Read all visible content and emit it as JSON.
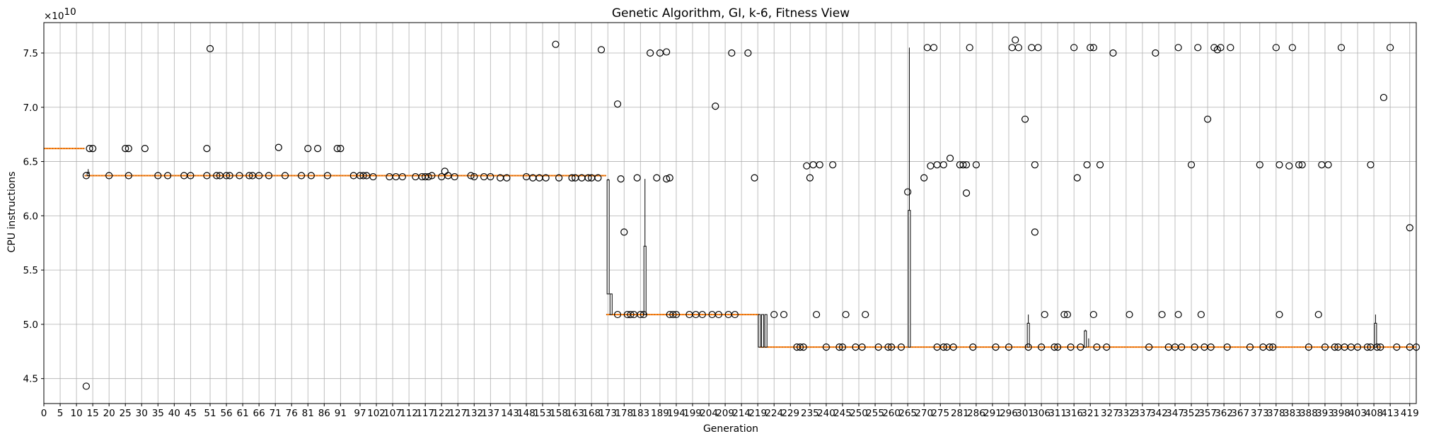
{
  "chart_data": {
    "type": "box",
    "title": "Genetic Algorithm, GI, k-6, Fitness View",
    "xlabel": "Generation",
    "ylabel": "CPU instructions",
    "y_multiplier_label": "×10",
    "y_multiplier_exponent": "10",
    "xlim": [
      0,
      421
    ],
    "ylim": [
      4.27,
      7.78
    ],
    "grid": true,
    "x_ticks": [
      0,
      5,
      10,
      15,
      20,
      25,
      30,
      35,
      40,
      45,
      51,
      56,
      61,
      66,
      71,
      76,
      81,
      86,
      91,
      97,
      102,
      107,
      112,
      117,
      122,
      127,
      132,
      137,
      143,
      148,
      153,
      158,
      163,
      168,
      173,
      178,
      183,
      189,
      194,
      199,
      204,
      209,
      214,
      219,
      224,
      229,
      235,
      240,
      245,
      250,
      255,
      260,
      265,
      270,
      275,
      281,
      286,
      291,
      296,
      301,
      306,
      311,
      316,
      321,
      327,
      332,
      337,
      342,
      347,
      352,
      357,
      362,
      367,
      373,
      378,
      383,
      388,
      393,
      398,
      403,
      408,
      413,
      419
    ],
    "y_ticks": [
      4.5,
      5.0,
      5.5,
      6.0,
      6.5,
      7.0,
      7.5
    ],
    "y_tick_labels": [
      "4.5",
      "5.0",
      "5.5",
      "6.0",
      "6.5",
      "7.0",
      "7.5"
    ],
    "median_segments": [
      {
        "from": 0,
        "to": 12.5,
        "value": 6.62
      },
      {
        "from": 12.5,
        "to": 172.5,
        "value": 6.37
      },
      {
        "from": 172.5,
        "to": 219.5,
        "value": 5.09
      },
      {
        "from": 219.5,
        "to": 421,
        "value": 4.79
      }
    ],
    "whiskers": [
      {
        "x": 13.6,
        "low": 6.37,
        "high": 6.43
      },
      {
        "x": 173.1,
        "low": 5.28,
        "high": 6.34
      },
      {
        "x": 174,
        "low": 5.09,
        "high": 5.28
      },
      {
        "x": 184.4,
        "low": 5.09,
        "high": 6.34
      },
      {
        "x": 219.5,
        "low": 4.79,
        "high": 5.09
      },
      {
        "x": 220.5,
        "low": 4.79,
        "high": 5.09
      },
      {
        "x": 221.5,
        "low": 4.79,
        "high": 5.09
      },
      {
        "x": 265.5,
        "low": 4.79,
        "high": 7.55
      },
      {
        "x": 302,
        "low": 4.79,
        "high": 5.09
      },
      {
        "x": 319.5,
        "low": 4.79,
        "high": 4.95
      },
      {
        "x": 320.5,
        "low": 4.79,
        "high": 4.87
      },
      {
        "x": 408.5,
        "low": 4.79,
        "high": 5.09
      }
    ],
    "boxes": [
      {
        "x": 13.6,
        "q1": 6.37,
        "q3": 6.4
      },
      {
        "x": 173.1,
        "q1": 5.28,
        "q3": 6.33
      },
      {
        "x": 174,
        "q1": 5.09,
        "q3": 5.28
      },
      {
        "x": 184.4,
        "q1": 5.09,
        "q3": 5.72
      },
      {
        "x": 219.5,
        "q1": 4.79,
        "q3": 5.09
      },
      {
        "x": 220.5,
        "q1": 4.79,
        "q3": 5.09
      },
      {
        "x": 221.5,
        "q1": 4.79,
        "q3": 5.09
      },
      {
        "x": 265.5,
        "q1": 4.79,
        "q3": 6.05
      },
      {
        "x": 302,
        "q1": 4.79,
        "q3": 5.01
      },
      {
        "x": 319.5,
        "q1": 4.79,
        "q3": 4.94
      },
      {
        "x": 408.5,
        "q1": 4.79,
        "q3": 5.01
      }
    ],
    "outliers": [
      [
        13,
        4.43
      ],
      [
        13,
        6.37
      ],
      [
        14,
        6.62
      ],
      [
        15,
        6.62
      ],
      [
        20,
        6.37
      ],
      [
        25,
        6.62
      ],
      [
        26,
        6.62
      ],
      [
        26,
        6.37
      ],
      [
        31,
        6.62
      ],
      [
        35,
        6.37
      ],
      [
        38,
        6.37
      ],
      [
        43,
        6.37
      ],
      [
        45,
        6.37
      ],
      [
        50,
        6.62
      ],
      [
        50,
        6.37
      ],
      [
        51,
        7.54
      ],
      [
        53,
        6.37
      ],
      [
        54,
        6.37
      ],
      [
        56,
        6.37
      ],
      [
        57,
        6.37
      ],
      [
        60,
        6.37
      ],
      [
        63,
        6.37
      ],
      [
        64,
        6.37
      ],
      [
        66,
        6.37
      ],
      [
        69,
        6.37
      ],
      [
        72,
        6.63
      ],
      [
        74,
        6.37
      ],
      [
        79,
        6.37
      ],
      [
        81,
        6.62
      ],
      [
        82,
        6.37
      ],
      [
        84,
        6.62
      ],
      [
        87,
        6.37
      ],
      [
        90,
        6.62
      ],
      [
        91,
        6.62
      ],
      [
        95,
        6.37
      ],
      [
        97,
        6.37
      ],
      [
        98,
        6.37
      ],
      [
        99,
        6.37
      ],
      [
        101,
        6.36
      ],
      [
        106,
        6.36
      ],
      [
        108,
        6.36
      ],
      [
        110,
        6.36
      ],
      [
        114,
        6.36
      ],
      [
        116,
        6.36
      ],
      [
        117,
        6.36
      ],
      [
        118,
        6.36
      ],
      [
        119,
        6.37
      ],
      [
        122,
        6.36
      ],
      [
        123,
        6.41
      ],
      [
        124,
        6.37
      ],
      [
        126,
        6.36
      ],
      [
        131,
        6.37
      ],
      [
        132,
        6.36
      ],
      [
        135,
        6.36
      ],
      [
        137,
        6.36
      ],
      [
        140,
        6.35
      ],
      [
        142,
        6.35
      ],
      [
        148,
        6.36
      ],
      [
        150,
        6.35
      ],
      [
        152,
        6.35
      ],
      [
        154,
        6.35
      ],
      [
        157,
        7.58
      ],
      [
        158,
        6.35
      ],
      [
        162,
        6.35
      ],
      [
        163,
        6.35
      ],
      [
        165,
        6.35
      ],
      [
        167,
        6.35
      ],
      [
        168,
        6.35
      ],
      [
        170,
        6.35
      ],
      [
        171,
        7.53
      ],
      [
        176,
        7.03
      ],
      [
        176,
        5.09
      ],
      [
        177,
        6.34
      ],
      [
        178,
        5.85
      ],
      [
        179,
        5.09
      ],
      [
        180,
        5.09
      ],
      [
        181,
        5.09
      ],
      [
        182,
        6.35
      ],
      [
        183,
        5.09
      ],
      [
        184,
        5.09
      ],
      [
        186,
        7.5
      ],
      [
        188,
        6.35
      ],
      [
        189,
        7.5
      ],
      [
        191,
        6.34
      ],
      [
        191,
        7.51
      ],
      [
        192,
        6.35
      ],
      [
        192,
        5.09
      ],
      [
        193,
        5.09
      ],
      [
        194,
        5.09
      ],
      [
        198,
        5.09
      ],
      [
        200,
        5.09
      ],
      [
        202,
        5.09
      ],
      [
        205,
        5.09
      ],
      [
        206,
        7.01
      ],
      [
        207,
        5.09
      ],
      [
        210,
        5.09
      ],
      [
        211,
        7.5
      ],
      [
        212,
        5.09
      ],
      [
        216,
        7.5
      ],
      [
        218,
        6.35
      ],
      [
        224,
        5.09
      ],
      [
        227,
        5.09
      ],
      [
        231,
        4.79
      ],
      [
        232,
        4.79
      ],
      [
        233,
        4.79
      ],
      [
        234,
        6.46
      ],
      [
        235,
        6.35
      ],
      [
        236,
        6.47
      ],
      [
        237,
        5.09
      ],
      [
        238,
        6.47
      ],
      [
        240,
        4.79
      ],
      [
        242,
        6.47
      ],
      [
        244,
        4.79
      ],
      [
        245,
        4.79
      ],
      [
        246,
        5.09
      ],
      [
        249,
        4.79
      ],
      [
        251,
        4.79
      ],
      [
        252,
        5.09
      ],
      [
        256,
        4.79
      ],
      [
        259,
        4.79
      ],
      [
        260,
        4.79
      ],
      [
        263,
        4.79
      ],
      [
        265,
        6.22
      ],
      [
        270,
        6.35
      ],
      [
        271,
        7.55
      ],
      [
        272,
        6.46
      ],
      [
        273,
        7.55
      ],
      [
        274,
        6.47
      ],
      [
        274,
        4.79
      ],
      [
        276,
        6.47
      ],
      [
        276,
        4.79
      ],
      [
        277,
        4.79
      ],
      [
        278,
        6.53
      ],
      [
        279,
        4.79
      ],
      [
        281,
        6.47
      ],
      [
        282,
        6.47
      ],
      [
        283,
        6.21
      ],
      [
        283,
        6.47
      ],
      [
        284,
        7.55
      ],
      [
        285,
        4.79
      ],
      [
        286,
        6.47
      ],
      [
        292,
        4.79
      ],
      [
        296,
        4.79
      ],
      [
        297,
        7.55
      ],
      [
        298,
        7.62
      ],
      [
        299,
        7.55
      ],
      [
        301,
        6.89
      ],
      [
        302,
        4.79
      ],
      [
        303,
        7.55
      ],
      [
        304,
        6.47
      ],
      [
        304,
        5.85
      ],
      [
        305,
        7.55
      ],
      [
        306,
        4.79
      ],
      [
        307,
        5.09
      ],
      [
        310,
        4.79
      ],
      [
        311,
        4.79
      ],
      [
        313,
        5.09
      ],
      [
        314,
        5.09
      ],
      [
        315,
        4.79
      ],
      [
        316,
        7.55
      ],
      [
        317,
        6.35
      ],
      [
        318,
        4.79
      ],
      [
        320,
        6.47
      ],
      [
        321,
        7.55
      ],
      [
        322,
        7.55
      ],
      [
        322,
        5.09
      ],
      [
        323,
        4.79
      ],
      [
        324,
        6.47
      ],
      [
        326,
        4.79
      ],
      [
        328,
        7.5
      ],
      [
        333,
        5.09
      ],
      [
        339,
        4.79
      ],
      [
        341,
        7.5
      ],
      [
        343,
        5.09
      ],
      [
        345,
        4.79
      ],
      [
        347,
        4.79
      ],
      [
        348,
        7.55
      ],
      [
        348,
        5.09
      ],
      [
        349,
        4.79
      ],
      [
        352,
        6.47
      ],
      [
        353,
        4.79
      ],
      [
        354,
        7.55
      ],
      [
        355,
        5.09
      ],
      [
        356,
        4.79
      ],
      [
        357,
        6.89
      ],
      [
        358,
        4.79
      ],
      [
        359,
        7.55
      ],
      [
        360,
        7.53
      ],
      [
        361,
        7.55
      ],
      [
        363,
        4.79
      ],
      [
        364,
        7.55
      ],
      [
        370,
        4.79
      ],
      [
        373,
        6.47
      ],
      [
        374,
        4.79
      ],
      [
        376,
        4.79
      ],
      [
        377,
        4.79
      ],
      [
        378,
        7.55
      ],
      [
        379,
        6.47
      ],
      [
        379,
        5.09
      ],
      [
        382,
        6.46
      ],
      [
        383,
        7.55
      ],
      [
        385,
        6.47
      ],
      [
        386,
        6.47
      ],
      [
        388,
        4.79
      ],
      [
        391,
        5.09
      ],
      [
        392,
        6.47
      ],
      [
        393,
        4.79
      ],
      [
        394,
        6.47
      ],
      [
        396,
        4.79
      ],
      [
        397,
        4.79
      ],
      [
        398,
        7.55
      ],
      [
        399,
        4.79
      ],
      [
        401,
        4.79
      ],
      [
        403,
        4.79
      ],
      [
        406,
        4.79
      ],
      [
        407,
        4.79
      ],
      [
        407,
        6.47
      ],
      [
        409,
        4.79
      ],
      [
        410,
        4.79
      ],
      [
        411,
        7.09
      ],
      [
        413,
        7.55
      ],
      [
        415,
        4.79
      ],
      [
        419,
        5.89
      ],
      [
        419,
        4.79
      ],
      [
        421,
        4.79
      ]
    ]
  }
}
